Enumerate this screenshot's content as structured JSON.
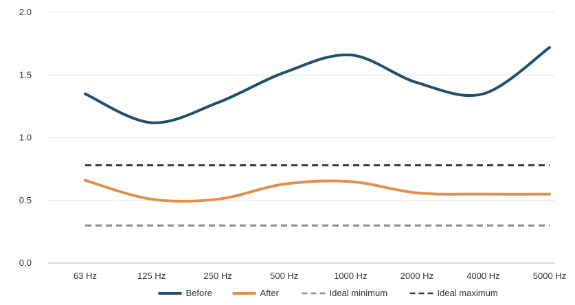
{
  "chart_data": {
    "type": "line",
    "title": "",
    "xlabel": "",
    "ylabel": "",
    "categories": [
      "63 Hz",
      "125 Hz",
      "250 Hz",
      "500 Hz",
      "1000 Hz",
      "2000 Hz",
      "4000 Hz",
      "5000 Hz"
    ],
    "y_ticks": [
      "0.0",
      "0.5",
      "1.0",
      "1.5",
      "2.0"
    ],
    "ylim": [
      0,
      2.0
    ],
    "grid": true,
    "legend_position": "bottom",
    "series": [
      {
        "name": "Before",
        "values": [
          1.35,
          1.12,
          1.28,
          1.52,
          1.66,
          1.44,
          1.35,
          1.72
        ],
        "color": "#1f4e6e",
        "style": "solid"
      },
      {
        "name": "After",
        "values": [
          0.66,
          0.51,
          0.51,
          0.63,
          0.65,
          0.56,
          0.55,
          0.55
        ],
        "color": "#e1904a",
        "style": "solid"
      },
      {
        "name": "Ideal minimum",
        "values": [
          0.3,
          0.3,
          0.3,
          0.3,
          0.3,
          0.3,
          0.3,
          0.3
        ],
        "color": "#8a8a8a",
        "style": "dashed"
      },
      {
        "name": "Ideal maximum",
        "values": [
          0.78,
          0.78,
          0.78,
          0.78,
          0.78,
          0.78,
          0.78,
          0.78
        ],
        "color": "#3a3a3a",
        "style": "dashed"
      }
    ]
  }
}
